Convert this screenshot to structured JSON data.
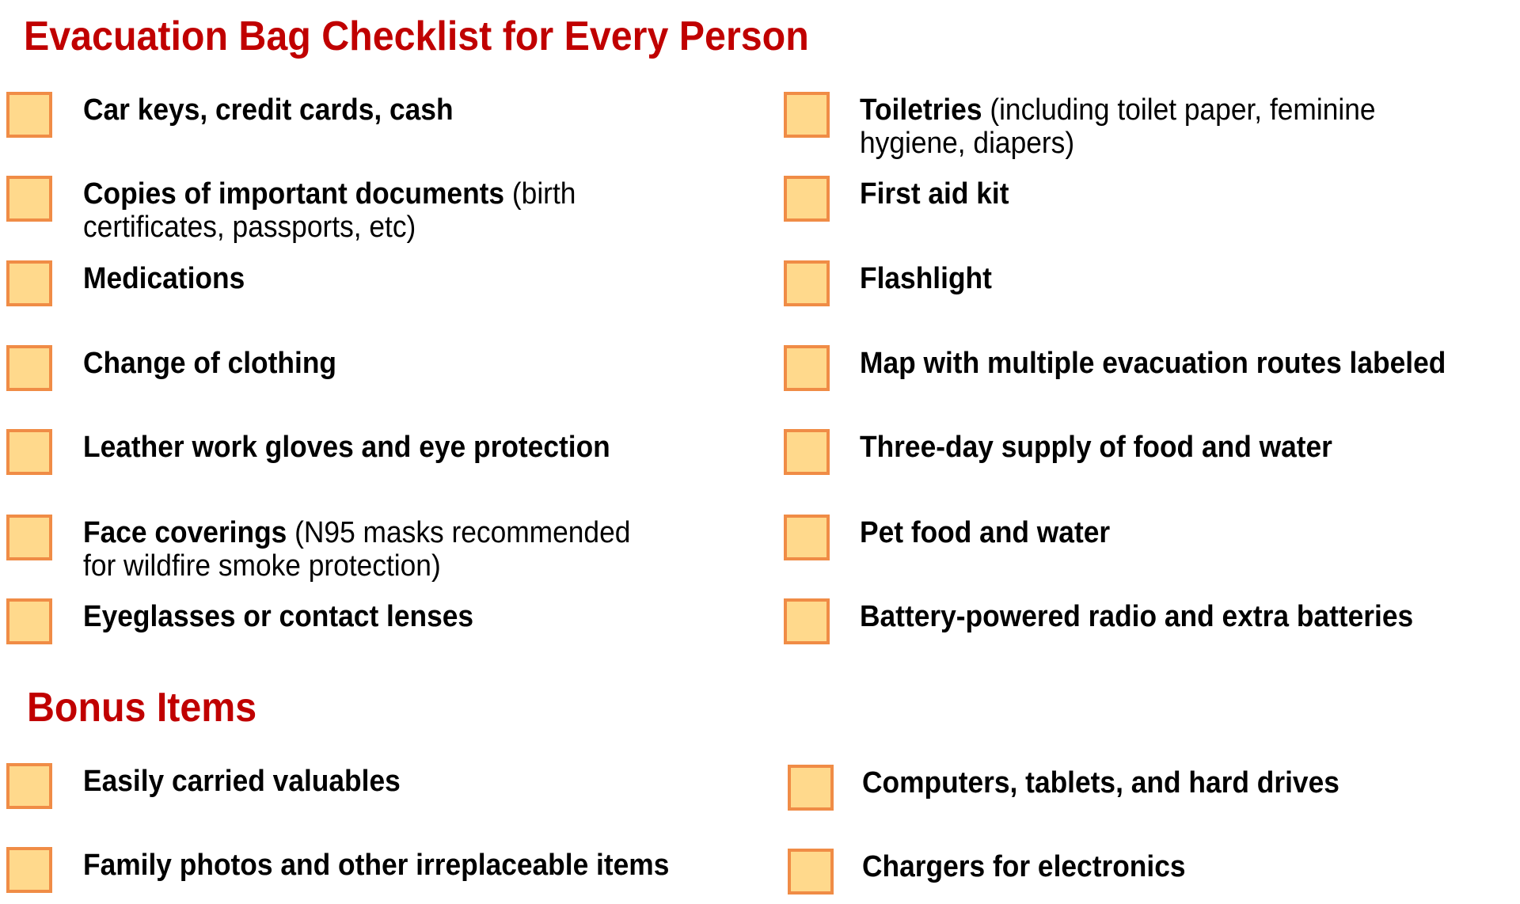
{
  "title": "Evacuation Bag Checklist for Every Person",
  "bonus_title": "Bonus Items",
  "colors": {
    "heading": "#c00000",
    "checkbox_fill": "#ffd98c",
    "checkbox_border": "#f08c46"
  },
  "left_items": [
    {
      "bold": "Car keys, credit cards, cash",
      "line2": ""
    },
    {
      "bold": "Copies of important documents",
      "rest": " (birth",
      "line2": "certificates, passports, etc)"
    },
    {
      "bold": "Medications",
      "line2": ""
    },
    {
      "bold": "Change of clothing",
      "line2": ""
    },
    {
      "bold": "Leather work gloves and eye protection",
      "line2": ""
    },
    {
      "bold": "Face coverings",
      "rest": " (N95 masks recommended",
      "line2": "for wildfire smoke protection)"
    },
    {
      "bold": "Eyeglasses or contact lenses",
      "line2": ""
    }
  ],
  "right_items": [
    {
      "bold": "Toiletries",
      "rest": " (including toilet paper, feminine",
      "line2": "hygiene, diapers)"
    },
    {
      "bold": "First aid kit",
      "line2": ""
    },
    {
      "bold": "Flashlight",
      "line2": ""
    },
    {
      "bold": "Map with multiple evacuation routes labeled",
      "line2": ""
    },
    {
      "bold": "Three-day supply of food and water",
      "line2": ""
    },
    {
      "bold": "Pet food and water",
      "line2": ""
    },
    {
      "bold": "Battery-powered radio and extra batteries",
      "line2": ""
    }
  ],
  "bonus_left": [
    {
      "bold": "Easily carried valuables"
    },
    {
      "bold": "Family photos and other irreplaceable items"
    }
  ],
  "bonus_right": [
    {
      "bold": "Computers, tablets, and hard drives"
    },
    {
      "bold": "Chargers for electronics"
    }
  ]
}
